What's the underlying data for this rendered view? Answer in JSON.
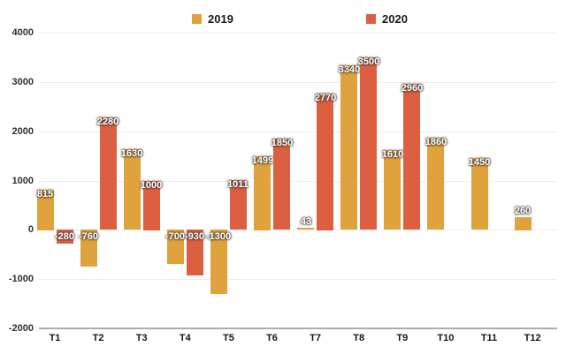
{
  "chart_data": {
    "type": "bar",
    "title": "",
    "xlabel": "",
    "ylabel": "",
    "categories": [
      "T1",
      "T2",
      "T3",
      "T4",
      "T5",
      "T6",
      "T7",
      "T8",
      "T9",
      "T10",
      "T11",
      "T12"
    ],
    "series": [
      {
        "name": "2019",
        "color": "#E0A23C",
        "values": [
          815,
          -760,
          1630,
          -700,
          -1300,
          1499,
          43,
          3340,
          1610,
          1860,
          1450,
          260
        ]
      },
      {
        "name": "2020",
        "color": "#DC5F41",
        "values": [
          -280,
          2280,
          1000,
          -930,
          1011,
          1850,
          2770,
          3500,
          2960,
          null,
          null,
          null
        ]
      }
    ],
    "ylim": [
      -2000,
      4000
    ],
    "yticks": [
      4000,
      3000,
      2000,
      1000,
      0,
      -1000,
      -2000
    ],
    "grid": true,
    "legend_position": "top",
    "bar_label_color": "#ffffff",
    "background_color": "#ffffff"
  }
}
